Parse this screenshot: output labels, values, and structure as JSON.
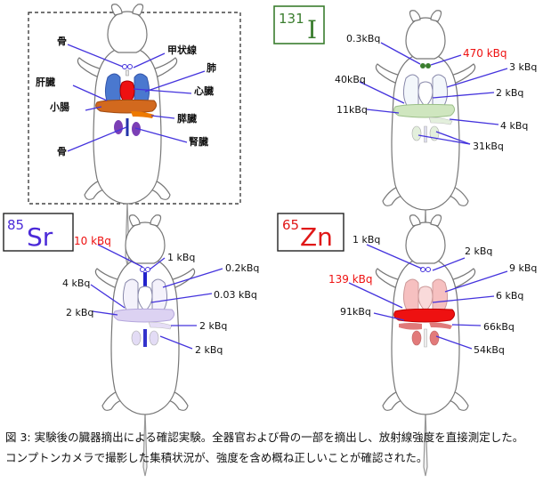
{
  "legend_panel": {
    "labels": {
      "bone_top": "骨",
      "thyroid": "甲状線",
      "lung": "肺",
      "liver": "肝臓",
      "heart": "心臓",
      "small_intestine": "小腸",
      "pancreas": "膵臓",
      "kidney": "腎臓",
      "bone_bottom": "骨"
    }
  },
  "panels": {
    "i131": {
      "isotope_mass": "131",
      "isotope_symbol": "I",
      "isotope_color": "#3a7d2e",
      "labels": {
        "thyroid_top": "0.3kBq",
        "thyroid_red": "470 kBq",
        "lung": "3 kBq",
        "liver": "40kBq",
        "heart": "2 kBq",
        "small_intestine": "11kBq",
        "pancreas": "4 kBq",
        "kidney": "31kBq"
      }
    },
    "sr85": {
      "isotope_mass": "85",
      "isotope_symbol": "Sr",
      "isotope_color": "#4b2ad8",
      "labels": {
        "bone_red": "10 kBq",
        "thyroid": "1 kBq",
        "lung": "0.2kBq",
        "liver": "4 kBq",
        "heart": "0.03 kBq",
        "small_intestine": "2 kBq",
        "pancreas": "2 kBq",
        "kidney": "2 kBq"
      }
    },
    "zn65": {
      "isotope_mass": "65",
      "isotope_symbol": "Zn",
      "isotope_color": "#e01818",
      "labels": {
        "thyroid": "1 kBq",
        "bone": "2 kBq",
        "lung": "9 kBq",
        "liver_red": "139 kBq",
        "heart": "6 kBq",
        "small_intestine": "91kBq",
        "pancreas": "66kBq",
        "kidney": "54kBq"
      }
    }
  },
  "caption": {
    "line1": "図 3:  実験後の臓器摘出による確認実験。全器官および骨の一部を摘出し、放射線強度を直接測定した。",
    "line2": "コンプトンカメラで撮影した集積状況が、強度を含め概ね正しいことが確認された。"
  },
  "colors": {
    "line_blue": "#4433dd",
    "label_red": "#ee1111"
  }
}
